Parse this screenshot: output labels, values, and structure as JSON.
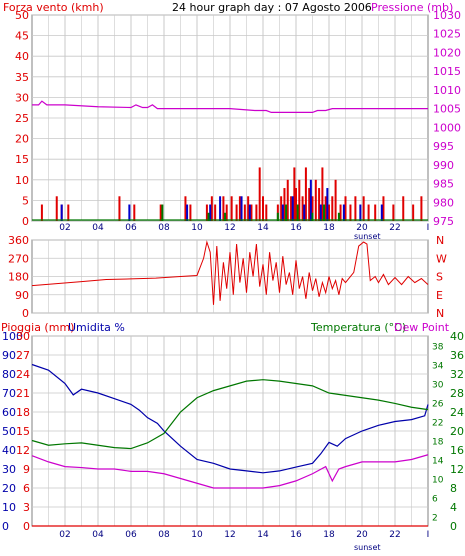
{
  "header": {
    "wind_label": "Forza vento (kmh)",
    "title": "24 hour graph day : 07 Agosto 2006",
    "pressure_label": "Pressione (mb)"
  },
  "panel2_labels": {
    "sunset": "sunset"
  },
  "panel3_labels": {
    "rain_label": "Pioggia (mm)",
    "humidity_label": "Umidita %",
    "temp_label": "Temperatura (°C)",
    "dewpoint_label": "Dew Point",
    "sunset": "sunset"
  },
  "colors": {
    "wind": "#e00000",
    "gust": "#0000cc",
    "calm": "#007700",
    "pressure": "#cc00cc",
    "direction": "#e00000",
    "rain": "#e00000",
    "humidity": "#0000aa",
    "temperature": "#007700",
    "dewpoint": "#cc00cc",
    "grid": "#c8c8c8"
  },
  "chart_data": [
    {
      "type": "bar",
      "title": "24 hour graph day : 07 Agosto 2006",
      "x_ticks": [
        "02",
        "04",
        "06",
        "08",
        "10",
        "12",
        "14",
        "16",
        "18",
        "20",
        "22",
        "I"
      ],
      "x_range_hours": [
        0,
        24
      ],
      "y_left_label": "Forza vento (kmh)",
      "y_left_range": [
        0,
        50
      ],
      "y_left_ticks": [
        "0",
        "5",
        "10",
        "15",
        "20",
        "25",
        "30",
        "35",
        "40",
        "45",
        "50"
      ],
      "y_right_label": "Pressione (mb)",
      "y_right_range": [
        975,
        1030
      ],
      "y_right_ticks": [
        "975",
        "980",
        "985",
        "990",
        "995",
        "1000",
        "1005",
        "1010",
        "1015",
        "1020",
        "1025",
        "1030"
      ],
      "wind_bars": [
        {
          "h": 0.6,
          "v": 4
        },
        {
          "h": 1.5,
          "v": 6
        },
        {
          "h": 1.8,
          "v": 4
        },
        {
          "h": 2.2,
          "v": 4
        },
        {
          "h": 5.3,
          "v": 6
        },
        {
          "h": 6.2,
          "v": 4
        },
        {
          "h": 7.8,
          "v": 4
        },
        {
          "h": 9.3,
          "v": 6
        },
        {
          "h": 9.6,
          "v": 4
        },
        {
          "h": 10.6,
          "v": 4
        },
        {
          "h": 10.9,
          "v": 6
        },
        {
          "h": 11.1,
          "v": 4
        },
        {
          "h": 11.6,
          "v": 6
        },
        {
          "h": 11.8,
          "v": 4
        },
        {
          "h": 12.1,
          "v": 6
        },
        {
          "h": 12.4,
          "v": 4
        },
        {
          "h": 12.6,
          "v": 6
        },
        {
          "h": 12.9,
          "v": 4
        },
        {
          "h": 13.1,
          "v": 6
        },
        {
          "h": 13.3,
          "v": 4
        },
        {
          "h": 13.6,
          "v": 4
        },
        {
          "h": 13.8,
          "v": 13
        },
        {
          "h": 14.0,
          "v": 6
        },
        {
          "h": 14.2,
          "v": 4
        },
        {
          "h": 14.9,
          "v": 4
        },
        {
          "h": 15.1,
          "v": 6
        },
        {
          "h": 15.3,
          "v": 8
        },
        {
          "h": 15.5,
          "v": 10
        },
        {
          "h": 15.7,
          "v": 6
        },
        {
          "h": 15.9,
          "v": 13
        },
        {
          "h": 16.0,
          "v": 8
        },
        {
          "h": 16.2,
          "v": 10
        },
        {
          "h": 16.4,
          "v": 6
        },
        {
          "h": 16.6,
          "v": 13
        },
        {
          "h": 16.8,
          "v": 8
        },
        {
          "h": 17.0,
          "v": 6
        },
        {
          "h": 17.2,
          "v": 10
        },
        {
          "h": 17.4,
          "v": 8
        },
        {
          "h": 17.6,
          "v": 13
        },
        {
          "h": 17.8,
          "v": 6
        },
        {
          "h": 18.0,
          "v": 4
        },
        {
          "h": 18.2,
          "v": 6
        },
        {
          "h": 18.4,
          "v": 10
        },
        {
          "h": 18.7,
          "v": 4
        },
        {
          "h": 19.0,
          "v": 6
        },
        {
          "h": 19.3,
          "v": 4
        },
        {
          "h": 19.6,
          "v": 6
        },
        {
          "h": 20.1,
          "v": 6
        },
        {
          "h": 20.4,
          "v": 4
        },
        {
          "h": 20.8,
          "v": 4
        },
        {
          "h": 21.3,
          "v": 6
        },
        {
          "h": 21.9,
          "v": 4
        },
        {
          "h": 22.5,
          "v": 6
        },
        {
          "h": 23.1,
          "v": 4
        },
        {
          "h": 23.6,
          "v": 6
        }
      ],
      "gust_bars": [
        {
          "h": 1.8,
          "v": 4
        },
        {
          "h": 5.9,
          "v": 4
        },
        {
          "h": 9.4,
          "v": 4
        },
        {
          "h": 10.8,
          "v": 4
        },
        {
          "h": 11.4,
          "v": 6
        },
        {
          "h": 12.7,
          "v": 6
        },
        {
          "h": 13.2,
          "v": 4
        },
        {
          "h": 15.2,
          "v": 4
        },
        {
          "h": 15.8,
          "v": 6
        },
        {
          "h": 16.5,
          "v": 4
        },
        {
          "h": 16.9,
          "v": 10
        },
        {
          "h": 17.5,
          "v": 4
        },
        {
          "h": 17.9,
          "v": 8
        },
        {
          "h": 18.9,
          "v": 4
        },
        {
          "h": 19.9,
          "v": 4
        },
        {
          "h": 21.2,
          "v": 4
        }
      ],
      "calm_bars": [
        {
          "h": 7.9,
          "v": 4
        },
        {
          "h": 10.7,
          "v": 2
        },
        {
          "h": 11.7,
          "v": 2
        },
        {
          "h": 14.9,
          "v": 2
        },
        {
          "h": 15.4,
          "v": 4
        },
        {
          "h": 16.1,
          "v": 4
        },
        {
          "h": 17.0,
          "v": 2
        },
        {
          "h": 17.7,
          "v": 4
        },
        {
          "h": 18.6,
          "v": 2
        }
      ],
      "pressure": {
        "name": "Pressione (mb)",
        "points": [
          [
            0,
            1006
          ],
          [
            0.4,
            1006
          ],
          [
            0.6,
            1007
          ],
          [
            0.9,
            1006
          ],
          [
            2.0,
            1006
          ],
          [
            4.0,
            1005.5
          ],
          [
            6.0,
            1005.3
          ],
          [
            6.3,
            1006
          ],
          [
            6.7,
            1005.3
          ],
          [
            7.0,
            1005.3
          ],
          [
            7.3,
            1006
          ],
          [
            7.6,
            1005
          ],
          [
            10.0,
            1005
          ],
          [
            12.0,
            1005
          ],
          [
            13.5,
            1004.5
          ],
          [
            14.2,
            1004.5
          ],
          [
            14.5,
            1004
          ],
          [
            17.0,
            1004
          ],
          [
            17.3,
            1004.5
          ],
          [
            17.8,
            1004.5
          ],
          [
            18.2,
            1005
          ],
          [
            24,
            1005
          ]
        ]
      }
    },
    {
      "type": "line",
      "title": "",
      "x_ticks": [
        "02",
        "04",
        "06",
        "08",
        "10",
        "12",
        "14",
        "16",
        "18",
        "20",
        "22",
        "I"
      ],
      "x_range_hours": [
        0,
        24
      ],
      "sunset_label": "sunset",
      "sunset_hour": 19.0,
      "y_range": [
        0,
        360
      ],
      "y_left_ticks": [
        "0",
        "90",
        "180",
        "270",
        "360"
      ],
      "y_right_ticks": [
        "N",
        "E",
        "S",
        "W",
        "N"
      ],
      "direction": {
        "name": "",
        "points": [
          [
            0,
            135
          ],
          [
            1.5,
            145
          ],
          [
            3.0,
            155
          ],
          [
            4.5,
            165
          ],
          [
            6.0,
            168
          ],
          [
            7.5,
            172
          ],
          [
            9.0,
            180
          ],
          [
            10.0,
            185
          ],
          [
            10.4,
            270
          ],
          [
            10.6,
            350
          ],
          [
            10.8,
            300
          ],
          [
            11.0,
            40
          ],
          [
            11.2,
            330
          ],
          [
            11.4,
            60
          ],
          [
            11.6,
            250
          ],
          [
            11.8,
            120
          ],
          [
            12.0,
            300
          ],
          [
            12.2,
            90
          ],
          [
            12.4,
            340
          ],
          [
            12.6,
            150
          ],
          [
            12.8,
            270
          ],
          [
            13.0,
            100
          ],
          [
            13.2,
            300
          ],
          [
            13.4,
            180
          ],
          [
            13.6,
            340
          ],
          [
            13.8,
            130
          ],
          [
            14.0,
            240
          ],
          [
            14.2,
            90
          ],
          [
            14.4,
            300
          ],
          [
            14.6,
            160
          ],
          [
            14.8,
            250
          ],
          [
            15.0,
            100
          ],
          [
            15.2,
            280
          ],
          [
            15.4,
            140
          ],
          [
            15.6,
            200
          ],
          [
            15.8,
            90
          ],
          [
            16.0,
            260
          ],
          [
            16.2,
            120
          ],
          [
            16.4,
            180
          ],
          [
            16.6,
            70
          ],
          [
            16.8,
            200
          ],
          [
            17.0,
            110
          ],
          [
            17.2,
            170
          ],
          [
            17.4,
            80
          ],
          [
            17.6,
            150
          ],
          [
            17.8,
            100
          ],
          [
            18.0,
            180
          ],
          [
            18.2,
            120
          ],
          [
            18.4,
            160
          ],
          [
            18.6,
            90
          ],
          [
            18.8,
            170
          ],
          [
            19.0,
            150
          ],
          [
            19.5,
            200
          ],
          [
            19.8,
            330
          ],
          [
            20.1,
            350
          ],
          [
            20.3,
            340
          ],
          [
            20.5,
            160
          ],
          [
            20.8,
            180
          ],
          [
            21.0,
            150
          ],
          [
            21.3,
            190
          ],
          [
            21.6,
            140
          ],
          [
            22.0,
            175
          ],
          [
            22.4,
            140
          ],
          [
            22.8,
            180
          ],
          [
            23.2,
            150
          ],
          [
            23.6,
            170
          ],
          [
            24,
            140
          ]
        ]
      }
    },
    {
      "type": "line",
      "title": "",
      "x_ticks": [
        "02",
        "04",
        "06",
        "08",
        "10",
        "12",
        "14",
        "16",
        "18",
        "20",
        "22",
        "I"
      ],
      "x_range_hours": [
        0,
        24
      ],
      "sunset_label": "sunset",
      "sunset_hour": 19.0,
      "y_left_label_outer": "Pioggia (mm)",
      "y_left_label_inner": "Umidita %",
      "y_right_label": "Temperatura (°C)",
      "y_right_label_2": "Dew Point",
      "humidity_axis_ticks": [
        "0",
        "10",
        "20",
        "30",
        "40",
        "50",
        "60",
        "70",
        "80",
        "90",
        "100"
      ],
      "rain_axis_ticks": [
        "0",
        "3",
        "6",
        "9",
        "12",
        "15",
        "18",
        "21",
        "24",
        "27",
        "30"
      ],
      "temp_axis_ticks": [
        "0",
        "4",
        "8",
        "12",
        "16",
        "20",
        "24",
        "28",
        "32",
        "36",
        "40"
      ],
      "extra_right_ticks": [
        "2",
        "6",
        "10",
        "14",
        "18",
        "22",
        "26",
        "30",
        "34",
        "38"
      ],
      "humidity": {
        "name": "Umidita %",
        "range": [
          0,
          100
        ],
        "points": [
          [
            0,
            85
          ],
          [
            1.0,
            82
          ],
          [
            2.0,
            75
          ],
          [
            2.5,
            69
          ],
          [
            3.0,
            72
          ],
          [
            4.0,
            70
          ],
          [
            5.0,
            67
          ],
          [
            6.0,
            64
          ],
          [
            6.5,
            61
          ],
          [
            7.0,
            57
          ],
          [
            7.6,
            54
          ],
          [
            8.0,
            50
          ],
          [
            9.0,
            42
          ],
          [
            10.0,
            35
          ],
          [
            11.0,
            33
          ],
          [
            12.0,
            30
          ],
          [
            13.0,
            29
          ],
          [
            14.0,
            28
          ],
          [
            15.0,
            29
          ],
          [
            16.0,
            31
          ],
          [
            17.0,
            33
          ],
          [
            17.5,
            38
          ],
          [
            18.0,
            44
          ],
          [
            18.5,
            42
          ],
          [
            19.0,
            46
          ],
          [
            20.0,
            50
          ],
          [
            21.0,
            53
          ],
          [
            22.0,
            55
          ],
          [
            23.0,
            56
          ],
          [
            23.8,
            58
          ],
          [
            24,
            64
          ]
        ]
      },
      "rain": {
        "name": "Pioggia (mm)",
        "range": [
          0,
          30
        ],
        "points": [
          [
            0,
            0
          ],
          [
            24,
            0
          ]
        ]
      },
      "temperature": {
        "name": "Temperatura (°C)",
        "range": [
          0,
          40
        ],
        "points": [
          [
            0,
            18
          ],
          [
            1.0,
            17
          ],
          [
            2.0,
            17.3
          ],
          [
            3.0,
            17.5
          ],
          [
            4.0,
            17
          ],
          [
            5.0,
            16.5
          ],
          [
            6.0,
            16.3
          ],
          [
            7.0,
            17.5
          ],
          [
            8.0,
            19.5
          ],
          [
            9.0,
            24
          ],
          [
            10.0,
            27
          ],
          [
            11.0,
            28.5
          ],
          [
            12.0,
            29.5
          ],
          [
            13.0,
            30.5
          ],
          [
            14.0,
            30.8
          ],
          [
            15.0,
            30.5
          ],
          [
            16.0,
            30
          ],
          [
            17.0,
            29.5
          ],
          [
            18.0,
            28
          ],
          [
            19.0,
            27.5
          ],
          [
            20.0,
            27
          ],
          [
            21.0,
            26.5
          ],
          [
            22.0,
            25.8
          ],
          [
            23.0,
            25
          ],
          [
            24,
            24.5
          ]
        ]
      },
      "dewpoint": {
        "name": "Dew Point",
        "range": [
          0,
          40
        ],
        "points": [
          [
            0,
            14.8
          ],
          [
            1.0,
            13.5
          ],
          [
            2.0,
            12.5
          ],
          [
            3.0,
            12.3
          ],
          [
            4.0,
            12.0
          ],
          [
            5.0,
            12.0
          ],
          [
            6.0,
            11.5
          ],
          [
            7.0,
            11.5
          ],
          [
            8.0,
            11.0
          ],
          [
            9.0,
            10.0
          ],
          [
            10.0,
            9.0
          ],
          [
            11.0,
            8.0
          ],
          [
            12.0,
            8.0
          ],
          [
            13.0,
            8.0
          ],
          [
            14.0,
            8.0
          ],
          [
            15.0,
            8.5
          ],
          [
            16.0,
            9.5
          ],
          [
            17.0,
            11.0
          ],
          [
            17.8,
            12.5
          ],
          [
            18.2,
            9.5
          ],
          [
            18.6,
            12.0
          ],
          [
            19.0,
            12.5
          ],
          [
            20.0,
            13.5
          ],
          [
            21.0,
            13.5
          ],
          [
            22.0,
            13.5
          ],
          [
            23.0,
            14.0
          ],
          [
            24,
            15.0
          ]
        ]
      }
    }
  ]
}
